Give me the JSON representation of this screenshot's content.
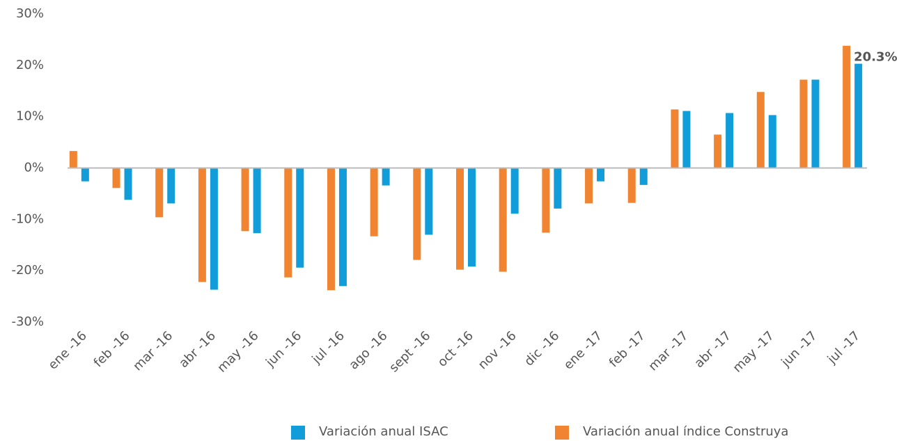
{
  "chart_data": {
    "type": "bar",
    "categories": [
      "ene -16",
      "feb -16",
      "mar -16",
      "abr -16",
      "may -16",
      "jun -16",
      "jul -16",
      "ago -16",
      "sept -16",
      "oct -16",
      "nov -16",
      "dic -16",
      "ene -17",
      "feb -17",
      "mar -17",
      "abr -17",
      "may -17",
      "jun -17",
      "jul -17"
    ],
    "series": [
      {
        "name": "Variación anual ISAC",
        "color": "#109dd9",
        "values": [
          -2.6,
          -6.2,
          -6.9,
          -23.7,
          -12.7,
          -19.4,
          -23.0,
          -3.4,
          -13.0,
          -19.2,
          -8.9,
          -7.9,
          -2.6,
          -3.3,
          11.1,
          10.7,
          10.3,
          17.2,
          20.3
        ],
        "value_labels": [
          null,
          null,
          null,
          null,
          null,
          null,
          null,
          null,
          null,
          null,
          null,
          null,
          null,
          null,
          null,
          null,
          null,
          null,
          "20.3%"
        ]
      },
      {
        "name": "Variación anual índice Construya",
        "color": "#f08430",
        "values": [
          3.3,
          -3.9,
          -9.6,
          -22.2,
          -12.3,
          -21.3,
          -23.8,
          -13.3,
          -17.9,
          -19.8,
          -20.2,
          -12.6,
          -6.9,
          -6.8,
          11.4,
          6.5,
          14.8,
          17.2,
          23.8
        ]
      }
    ],
    "ylim": [
      -30,
      30
    ],
    "yticks": [
      {
        "value": -30,
        "label": "-30%"
      },
      {
        "value": -20,
        "label": "-20%"
      },
      {
        "value": -10,
        "label": "-10%"
      },
      {
        "value": 0,
        "label": "0%"
      },
      {
        "value": 10,
        "label": "10%"
      },
      {
        "value": 20,
        "label": "20%"
      },
      {
        "value": 30,
        "label": "30%"
      }
    ],
    "legend": "bottom-right"
  }
}
